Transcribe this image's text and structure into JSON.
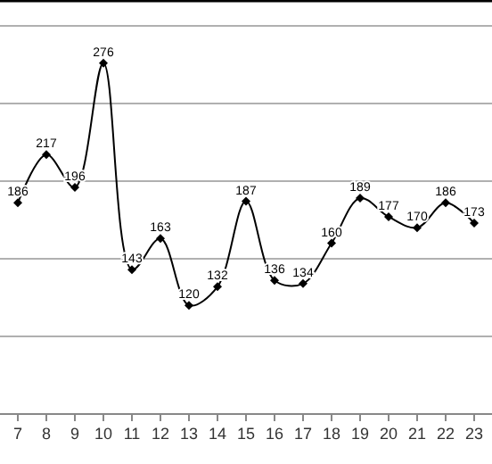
{
  "chart_data": {
    "type": "line",
    "categories": [
      "7",
      "8",
      "9",
      "10",
      "11",
      "12",
      "13",
      "14",
      "15",
      "16",
      "17",
      "18",
      "19",
      "20",
      "21",
      "22",
      "23"
    ],
    "series": [
      {
        "color": "#000000",
        "values": [
          186,
          217,
          196,
          276,
          143,
          163,
          120,
          132,
          187,
          136,
          134,
          160,
          189,
          177,
          170,
          186,
          173
        ]
      }
    ],
    "ylim": [
      50,
      312
    ],
    "yticks": [
      {
        "value": 100,
        "label": null
      },
      {
        "value": 150,
        "label": null
      },
      {
        "value": 200,
        "label": null
      },
      {
        "value": 250,
        "label": null
      },
      {
        "value": 300,
        "label": null
      }
    ],
    "grid": "y",
    "marker": "diamond",
    "line_style": "solid",
    "data_labels": true,
    "tick_labels": "x"
  }
}
